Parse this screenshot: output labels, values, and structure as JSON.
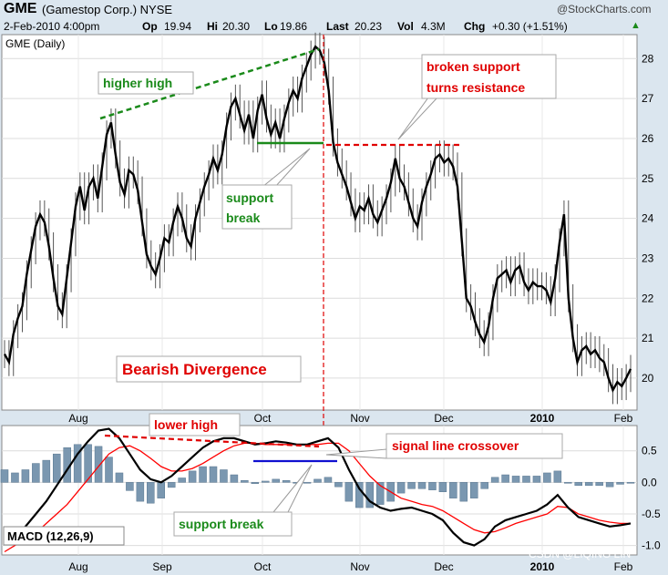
{
  "header": {
    "symbol": "GME",
    "company": "(Gamestop Corp.) NYSE",
    "brand": "@StockCharts.com",
    "date": "2-Feb-2010 4:00pm",
    "op_label": "Op",
    "op": "19.94",
    "hi_label": "Hi",
    "hi": "20.30",
    "lo_label": "Lo",
    "lo": "19.86",
    "last_label": "Last",
    "last": "20.23",
    "vol_label": "Vol",
    "vol": "4.3M",
    "chg_label": "Chg",
    "chg": "+0.30 (+1.51%)",
    "chg_arrow": "▲"
  },
  "watermark": "CSDN @LIQING LIN",
  "colors": {
    "price": "#000000",
    "green": "#1a8a1a",
    "red": "#e00000",
    "blue": "#1010d0",
    "histogram": "#7a97b0",
    "signal": "#ff0000"
  },
  "chart_data": [
    {
      "type": "line",
      "title": "GME (Daily)",
      "ylim": [
        19.2,
        28.6
      ],
      "y_ticks": [
        "28",
        "27",
        "26",
        "25",
        "24",
        "23",
        "22",
        "21",
        "20"
      ],
      "x_ticks": [
        "Aug",
        "Sep",
        "Oct",
        "Nov",
        "Dec",
        "2010",
        "Feb"
      ],
      "annotations": [
        "higher high",
        "support break",
        "broken support turns resistance",
        "Bearish Divergence"
      ],
      "series": [
        {
          "values": [
            20.6,
            20.4,
            21.1,
            21.5,
            21.8,
            22.6,
            23.2,
            23.8,
            24.1,
            23.9,
            23.3,
            22.5,
            21.8,
            21.6,
            22.5,
            23.4,
            24.3,
            24.8,
            24.2,
            24.8,
            25.0,
            24.5,
            25.3,
            26.1,
            26.4,
            25.6,
            24.9,
            24.6,
            25.2,
            25.1,
            24.7,
            23.9,
            23.1,
            22.8,
            22.6,
            23.0,
            23.5,
            23.4,
            23.9,
            24.3,
            24.0,
            23.5,
            23.3,
            24.0,
            24.4,
            24.8,
            25.1,
            25.5,
            25.2,
            25.6,
            26.3,
            26.8,
            27.0,
            26.6,
            26.2,
            26.6,
            26.0,
            26.7,
            27.1,
            26.5,
            26.1,
            26.4,
            26.0,
            26.5,
            26.9,
            27.2,
            27.0,
            27.5,
            27.8,
            28.1,
            28.3,
            28.2,
            27.9,
            27.2,
            25.9,
            25.4,
            25.1,
            24.8,
            24.4,
            24.0,
            24.3,
            24.2,
            24.5,
            24.1,
            23.9,
            24.2,
            24.5,
            24.9,
            25.5,
            25.0,
            24.8,
            24.4,
            24.0,
            23.8,
            24.4,
            24.8,
            25.1,
            25.5,
            25.6,
            25.4,
            25.5,
            25.3,
            24.8,
            23.4,
            22.0,
            21.8,
            21.4,
            21.1,
            20.9,
            21.3,
            22.0,
            22.5,
            22.6,
            22.7,
            22.4,
            22.7,
            22.8,
            22.4,
            22.2,
            22.4,
            22.3,
            22.3,
            22.2,
            21.9,
            22.5,
            23.4,
            24.1,
            22.0,
            21.0,
            20.4,
            20.7,
            20.8,
            20.6,
            20.7,
            20.5,
            20.4,
            20.0,
            19.7,
            19.9,
            19.8,
            20.0,
            20.23
          ]
        }
      ]
    },
    {
      "type": "line",
      "title": "MACD (12,26,9)",
      "ylim": [
        -1.15,
        0.9
      ],
      "y_ticks": [
        "0.5",
        "0.0",
        "-0.5",
        "-1.0"
      ],
      "x_ticks": [
        "Aug",
        "Sep",
        "Oct",
        "Nov",
        "Dec",
        "2010",
        "Feb"
      ],
      "annotations": [
        "lower high",
        "signal line crossover",
        "support break"
      ],
      "series": [
        {
          "name": "MACD",
          "values": [
            -0.9,
            -0.85,
            -0.7,
            -0.5,
            -0.3,
            -0.05,
            0.2,
            0.45,
            0.65,
            0.82,
            0.85,
            0.7,
            0.45,
            0.2,
            0.05,
            0.0,
            0.1,
            0.25,
            0.4,
            0.55,
            0.65,
            0.7,
            0.7,
            0.65,
            0.6,
            0.62,
            0.65,
            0.63,
            0.6,
            0.6,
            0.65,
            0.7,
            0.55,
            0.2,
            -0.1,
            -0.3,
            -0.4,
            -0.45,
            -0.42,
            -0.4,
            -0.45,
            -0.5,
            -0.6,
            -0.8,
            -0.95,
            -1.0,
            -0.9,
            -0.7,
            -0.6,
            -0.55,
            -0.5,
            -0.45,
            -0.35,
            -0.2,
            -0.4,
            -0.55,
            -0.6,
            -0.65,
            -0.7,
            -0.68,
            -0.65
          ]
        },
        {
          "name": "Signal",
          "values": [
            -1.1,
            -1.0,
            -0.9,
            -0.8,
            -0.65,
            -0.5,
            -0.35,
            -0.15,
            0.05,
            0.25,
            0.45,
            0.55,
            0.58,
            0.5,
            0.38,
            0.25,
            0.18,
            0.18,
            0.22,
            0.3,
            0.4,
            0.5,
            0.58,
            0.62,
            0.62,
            0.6,
            0.6,
            0.6,
            0.6,
            0.6,
            0.6,
            0.62,
            0.62,
            0.5,
            0.3,
            0.1,
            -0.05,
            -0.15,
            -0.25,
            -0.3,
            -0.35,
            -0.38,
            -0.45,
            -0.55,
            -0.65,
            -0.75,
            -0.8,
            -0.78,
            -0.72,
            -0.65,
            -0.6,
            -0.55,
            -0.5,
            -0.38,
            -0.4,
            -0.5,
            -0.55,
            -0.6,
            -0.63,
            -0.65,
            -0.65
          ]
        },
        {
          "name": "Histogram",
          "values": [
            0.2,
            0.15,
            0.2,
            0.3,
            0.35,
            0.45,
            0.55,
            0.6,
            0.6,
            0.57,
            0.4,
            0.15,
            -0.13,
            -0.3,
            -0.33,
            -0.25,
            -0.08,
            0.07,
            0.18,
            0.25,
            0.25,
            0.2,
            0.12,
            0.03,
            -0.02,
            0.02,
            0.05,
            0.03,
            0.0,
            0.0,
            0.05,
            0.08,
            -0.07,
            -0.3,
            -0.4,
            -0.4,
            -0.35,
            -0.3,
            -0.17,
            -0.1,
            -0.1,
            -0.12,
            -0.15,
            -0.25,
            -0.3,
            -0.25,
            -0.1,
            0.08,
            0.12,
            0.1,
            0.1,
            0.1,
            0.15,
            0.18,
            0.0,
            -0.05,
            -0.05,
            -0.05,
            -0.07,
            -0.03,
            0.0
          ]
        }
      ]
    }
  ],
  "labels": {
    "higher_high": "higher high",
    "support_break_top_1": "support",
    "support_break_top_2": "break",
    "broken_support_1": "broken support",
    "broken_support_2": "turns resistance",
    "bearish": "Bearish Divergence",
    "lower_high": "lower high",
    "signal_crossover": "signal line crossover",
    "support_break_bottom": "support break",
    "price_panel_title": "GME (Daily)",
    "macd_panel_title": "MACD (12,26,9)"
  }
}
